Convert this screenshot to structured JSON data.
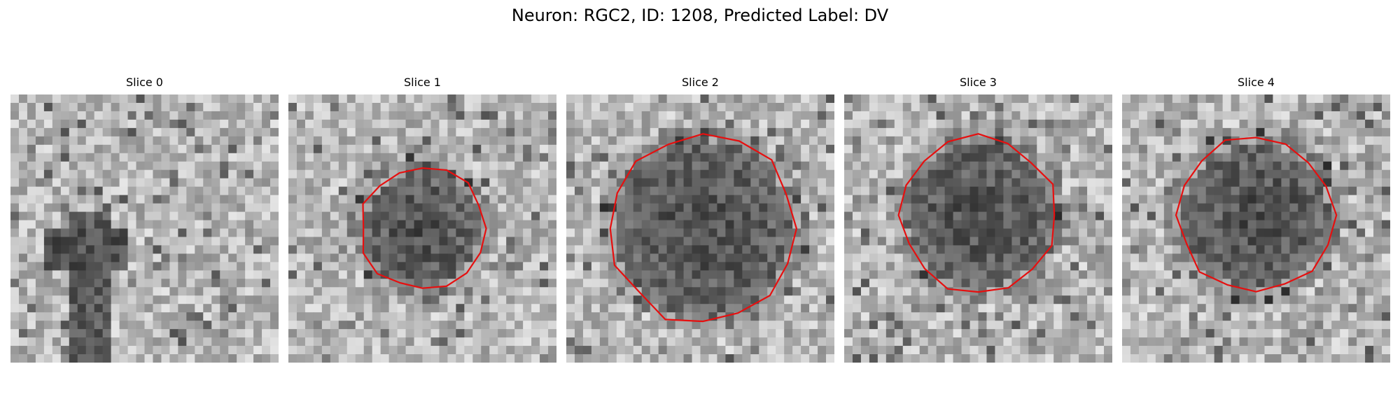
{
  "figure": {
    "title": "Neuron: RGC2, ID: 1208, Predicted Label: DV"
  },
  "outline_color": "#e60f0f",
  "panels": [
    {
      "title": "Slice 0",
      "has_outline": false,
      "seed": 11,
      "blob": "none"
    },
    {
      "title": "Slice 1",
      "has_outline": true,
      "seed": 23,
      "blob": "small"
    },
    {
      "title": "Slice 2",
      "has_outline": true,
      "seed": 37,
      "blob": "large"
    },
    {
      "title": "Slice 3",
      "has_outline": true,
      "seed": 51,
      "blob": "medium"
    },
    {
      "title": "Slice 4",
      "has_outline": true,
      "seed": 67,
      "blob": "medium"
    }
  ]
}
